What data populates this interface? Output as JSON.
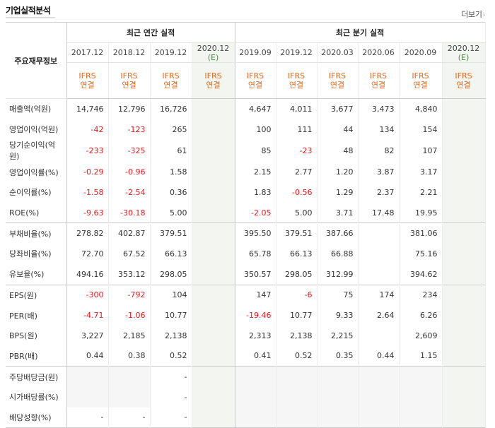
{
  "header": {
    "title": "기업실적분석",
    "more_label": "더보기"
  },
  "table": {
    "row_header": "주요재무정보",
    "annual_group": "최근 연간 실적",
    "quarter_group": "최근 분기 실적",
    "annual_periods": [
      "2017.12",
      "2018.12",
      "2019.12",
      "2020.12"
    ],
    "quarter_periods": [
      "2019.09",
      "2019.12",
      "2020.03",
      "2020.06",
      "2020.09",
      "2020.12"
    ],
    "estimate_mark": "(E)",
    "ifrs_top": "IFRS",
    "ifrs_bottom": "연결",
    "rows": [
      {
        "label": "매출액(억원)",
        "values": [
          "14,746",
          "12,796",
          "16,726",
          "",
          "4,647",
          "4,011",
          "3,677",
          "3,473",
          "4,840",
          ""
        ]
      },
      {
        "label": "영업이익(억원)",
        "values": [
          "-42",
          "-123",
          "265",
          "",
          "100",
          "111",
          "44",
          "134",
          "154",
          ""
        ]
      },
      {
        "label": "당기순이익(억원)",
        "values": [
          "-233",
          "-325",
          "61",
          "",
          "85",
          "-23",
          "48",
          "82",
          "107",
          ""
        ]
      },
      {
        "label": "영업이익률(%)",
        "values": [
          "-0.29",
          "-0.96",
          "1.58",
          "",
          "2.15",
          "2.77",
          "1.20",
          "3.87",
          "3.17",
          ""
        ]
      },
      {
        "label": "순이익률(%)",
        "values": [
          "-1.58",
          "-2.54",
          "0.36",
          "",
          "1.83",
          "-0.56",
          "1.29",
          "2.37",
          "2.21",
          ""
        ]
      },
      {
        "label": "ROE(%)",
        "values": [
          "-9.63",
          "-30.18",
          "5.00",
          "",
          "-2.05",
          "5.00",
          "3.71",
          "17.48",
          "19.95",
          ""
        ]
      },
      {
        "label": "부채비율(%)",
        "values": [
          "278.82",
          "402.87",
          "379.51",
          "",
          "395.50",
          "379.51",
          "387.66",
          "",
          "381.06",
          ""
        ]
      },
      {
        "label": "당좌비율(%)",
        "values": [
          "72.70",
          "67.52",
          "66.13",
          "",
          "65.78",
          "66.13",
          "66.88",
          "",
          "75.16",
          ""
        ]
      },
      {
        "label": "유보율(%)",
        "values": [
          "494.16",
          "353.12",
          "298.05",
          "",
          "350.57",
          "298.05",
          "312.99",
          "",
          "394.62",
          ""
        ]
      },
      {
        "label": "EPS(원)",
        "values": [
          "-300",
          "-792",
          "104",
          "",
          "147",
          "-6",
          "75",
          "174",
          "234",
          ""
        ]
      },
      {
        "label": "PER(배)",
        "values": [
          "-4.71",
          "-1.06",
          "10.77",
          "",
          "-19.46",
          "10.77",
          "9.33",
          "2.64",
          "6.26",
          ""
        ]
      },
      {
        "label": "BPS(원)",
        "values": [
          "3,227",
          "2,185",
          "2,138",
          "",
          "2,313",
          "2,138",
          "2,215",
          "",
          "2,609",
          ""
        ]
      },
      {
        "label": "PBR(배)",
        "values": [
          "0.44",
          "0.38",
          "0.52",
          "",
          "0.41",
          "0.52",
          "0.35",
          "0.44",
          "1.15",
          ""
        ]
      },
      {
        "label": "주당배당금(원)",
        "values": [
          "",
          "",
          "-",
          "",
          "",
          "",
          "",
          "",
          "",
          ""
        ]
      },
      {
        "label": "시가배당률(%)",
        "values": [
          "",
          "",
          "-",
          "",
          "",
          "",
          "",
          "",
          "",
          ""
        ]
      },
      {
        "label": "배당성향(%)",
        "values": [
          "-",
          "-",
          "-",
          "",
          "",
          "",
          "",
          "",
          "",
          ""
        ]
      }
    ]
  },
  "colors": {
    "negative": "#e4191d",
    "ifrs": "#e06b21",
    "estimate_bg": "#f3f6f0",
    "estimate_mark": "#3a9a2f"
  }
}
